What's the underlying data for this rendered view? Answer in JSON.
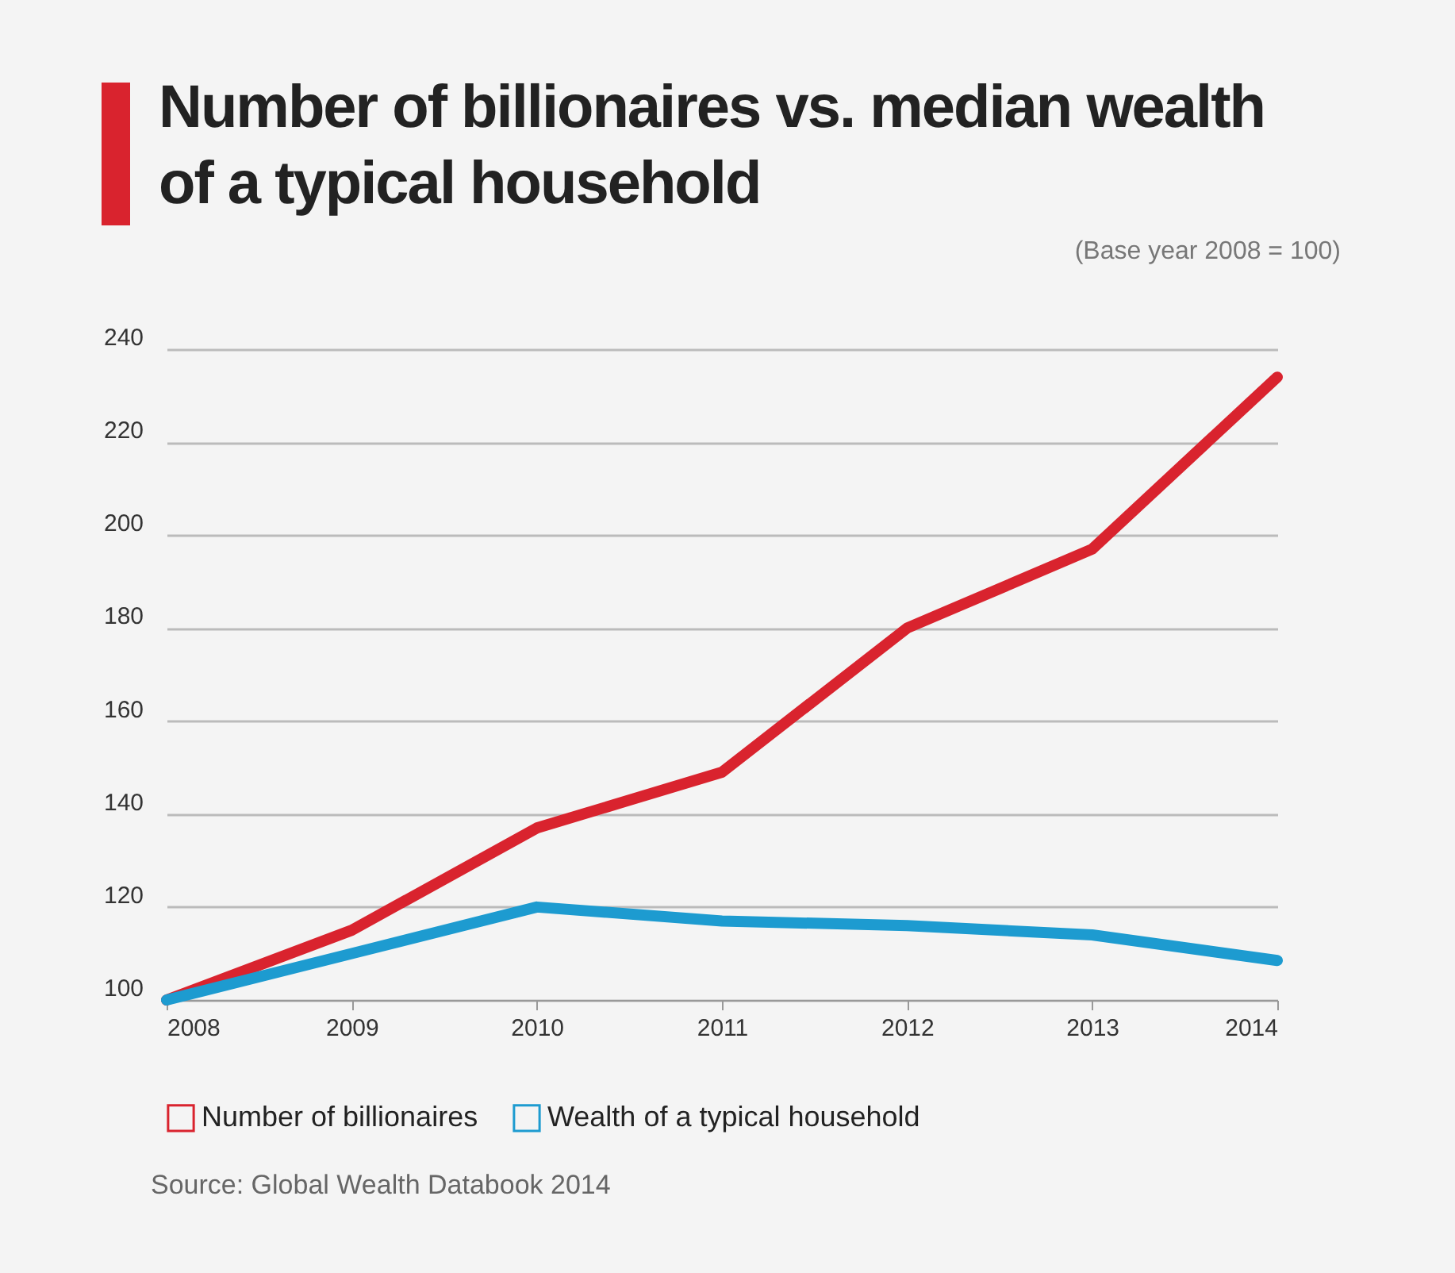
{
  "chart_data": {
    "type": "line",
    "title": "Number of billionaires vs. median wealth of a typical household",
    "subtitle": "(Base year 2008 = 100)",
    "categories": [
      "2008",
      "2009",
      "2010",
      "2011",
      "2012",
      "2013",
      "2014"
    ],
    "series": [
      {
        "name": "Number of billionaires",
        "color": "#d9232e",
        "values": [
          100,
          115,
          137,
          149,
          180,
          197,
          234
        ]
      },
      {
        "name": "Wealth of a typical household",
        "color": "#1d9bd0",
        "values": [
          100,
          110,
          120,
          117,
          116,
          114,
          108.5
        ]
      }
    ],
    "ylim": [
      100,
      240
    ],
    "yticks": [
      100,
      120,
      140,
      160,
      180,
      200,
      220,
      240
    ],
    "grid": "y",
    "legend": "bottom left",
    "marker": "none",
    "line_style": "solid",
    "annotations": [
      "Source: Global Wealth Databook 2014"
    ]
  }
}
